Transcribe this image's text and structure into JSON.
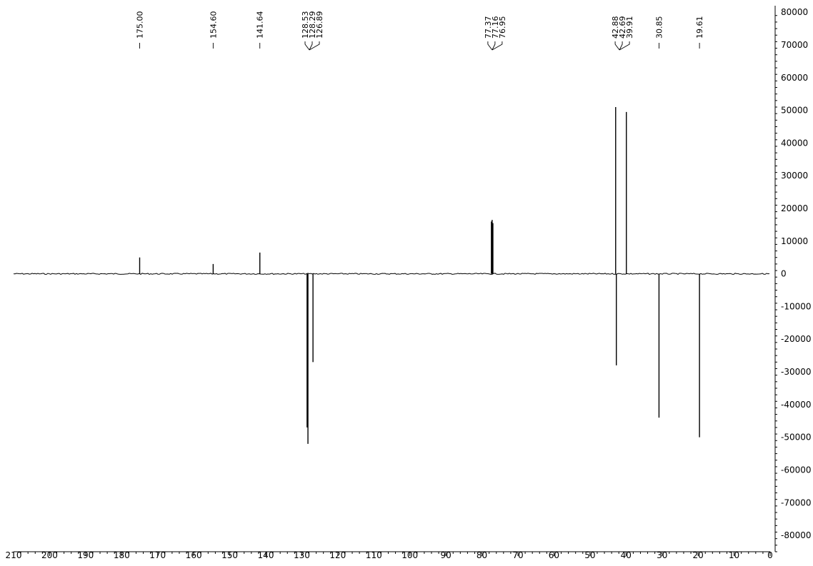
{
  "chart_data": {
    "type": "line",
    "title": "",
    "xlabel": "",
    "ylabel": "",
    "x_reversed": true,
    "xlim": [
      210,
      0
    ],
    "ylim": [
      -85000,
      82000
    ],
    "x_ticks": [
      210,
      200,
      190,
      180,
      170,
      160,
      150,
      140,
      130,
      120,
      110,
      100,
      90,
      80,
      70,
      60,
      50,
      40,
      30,
      20,
      10,
      0
    ],
    "x_tick_labels": [
      "210",
      "200",
      "190",
      "180",
      "170",
      "160",
      "150",
      "140",
      "130",
      "120",
      "110",
      "100",
      "90",
      "80",
      "70",
      "60",
      "50",
      "40",
      "30",
      "20",
      "10",
      "0"
    ],
    "y_ticks": [
      80000,
      70000,
      60000,
      50000,
      40000,
      30000,
      20000,
      10000,
      0,
      -10000,
      -20000,
      -30000,
      -40000,
      -50000,
      -60000,
      -70000,
      -80000
    ],
    "y_tick_labels": [
      "80000",
      "70000",
      "60000",
      "50000",
      "40000",
      "30000",
      "20000",
      "10000",
      "0",
      "-10000",
      "-20000",
      "-30000",
      "-40000",
      "-50000",
      "-60000",
      "-70000",
      "-80000"
    ],
    "grid": false,
    "peaks": [
      {
        "ppm": 175.0,
        "intensity": 5000
      },
      {
        "ppm": 154.6,
        "intensity": 3000
      },
      {
        "ppm": 141.64,
        "intensity": 6500
      },
      {
        "ppm": 128.53,
        "intensity": -47000
      },
      {
        "ppm": 128.29,
        "intensity": -52000
      },
      {
        "ppm": 126.89,
        "intensity": -27000
      },
      {
        "ppm": 77.37,
        "intensity": 16000
      },
      {
        "ppm": 77.16,
        "intensity": 16500
      },
      {
        "ppm": 76.95,
        "intensity": 15500
      },
      {
        "ppm": 42.88,
        "intensity": 51000
      },
      {
        "ppm": 42.69,
        "intensity": -28000
      },
      {
        "ppm": 39.91,
        "intensity": 49500
      },
      {
        "ppm": 30.85,
        "intensity": -44000
      },
      {
        "ppm": 19.61,
        "intensity": -50000
      }
    ],
    "peak_labels": [
      {
        "text": "175.00",
        "ppm": 175.0
      },
      {
        "text": "154.60",
        "ppm": 154.6
      },
      {
        "text": "141.64",
        "ppm": 141.64
      },
      {
        "text": "128.53",
        "ppm": 128.53
      },
      {
        "text": "128.29",
        "ppm": 128.29
      },
      {
        "text": "126.89",
        "ppm": 126.89
      },
      {
        "text": "77.37",
        "ppm": 77.37
      },
      {
        "text": "77.16",
        "ppm": 77.16
      },
      {
        "text": "76.95",
        "ppm": 76.95
      },
      {
        "text": "42.88",
        "ppm": 42.88
      },
      {
        "text": "42.69",
        "ppm": 42.69
      },
      {
        "text": "39.91",
        "ppm": 39.91
      },
      {
        "text": "30.85",
        "ppm": 30.85
      },
      {
        "text": "19.61",
        "ppm": 19.61
      }
    ],
    "peak_groups": [
      [
        0
      ],
      [
        1
      ],
      [
        2
      ],
      [
        3,
        4,
        5
      ],
      [
        6,
        7,
        8
      ],
      [
        9,
        10,
        11
      ],
      [
        12
      ],
      [
        13
      ]
    ],
    "line_color": "#000000"
  }
}
